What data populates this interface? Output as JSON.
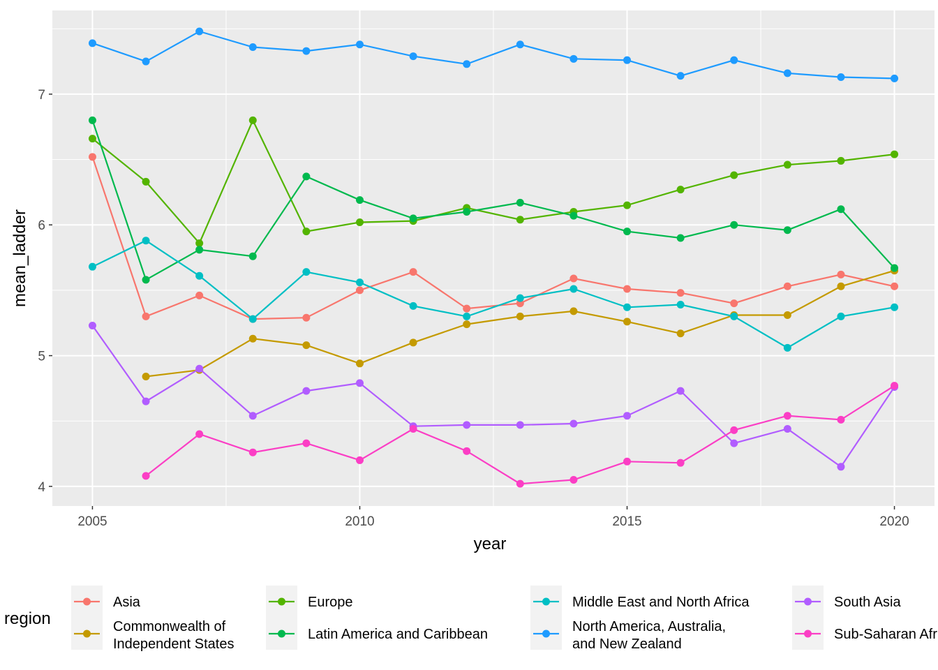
{
  "chart_data": {
    "type": "line",
    "xlabel": "year",
    "ylabel": "mean_ladder",
    "xlim": [
      2004.25,
      2020.75
    ],
    "ylim": [
      3.85,
      7.64
    ],
    "x_ticks": [
      2005,
      2010,
      2015,
      2020
    ],
    "y_ticks": [
      4,
      5,
      6,
      7
    ],
    "x_tick_labels": [
      "2005",
      "2010",
      "2015",
      "2020"
    ],
    "y_tick_labels": [
      "4",
      "5",
      "6",
      "7"
    ],
    "grid": true,
    "legend_title": "region",
    "legend_position": "bottom",
    "series": [
      {
        "name": "Asia",
        "color": "#F8766D",
        "x": [
          2005,
          2006,
          2007,
          2008,
          2009,
          2010,
          2011,
          2012,
          2013,
          2014,
          2015,
          2016,
          2017,
          2018,
          2019,
          2020
        ],
        "y": [
          6.52,
          5.3,
          5.46,
          5.28,
          5.29,
          5.5,
          5.64,
          5.36,
          5.4,
          5.59,
          5.51,
          5.48,
          5.4,
          5.53,
          5.62,
          5.53
        ]
      },
      {
        "name": "Commonwealth of Independent States",
        "color": "#C49A00",
        "x": [
          2006,
          2007,
          2008,
          2009,
          2010,
          2011,
          2012,
          2013,
          2014,
          2015,
          2016,
          2017,
          2018,
          2019,
          2020
        ],
        "y": [
          4.84,
          4.89,
          5.13,
          5.08,
          4.94,
          5.1,
          5.24,
          5.3,
          5.34,
          5.26,
          5.17,
          5.31,
          5.31,
          5.53,
          5.65
        ]
      },
      {
        "name": "Europe",
        "color": "#53B400",
        "x": [
          2005,
          2006,
          2007,
          2008,
          2009,
          2010,
          2011,
          2012,
          2013,
          2014,
          2015,
          2016,
          2017,
          2018,
          2019,
          2020
        ],
        "y": [
          6.66,
          6.33,
          5.86,
          6.8,
          5.95,
          6.02,
          6.03,
          6.13,
          6.04,
          6.1,
          6.15,
          6.27,
          6.38,
          6.46,
          6.49,
          6.54
        ]
      },
      {
        "name": "Latin America and Caribbean",
        "color": "#00B94E",
        "x": [
          2005,
          2006,
          2007,
          2008,
          2009,
          2010,
          2011,
          2012,
          2013,
          2014,
          2015,
          2016,
          2017,
          2018,
          2019,
          2020
        ],
        "y": [
          6.8,
          5.58,
          5.81,
          5.76,
          6.37,
          6.19,
          6.05,
          6.1,
          6.17,
          6.07,
          5.95,
          5.9,
          6.0,
          5.96,
          6.12,
          5.67
        ]
      },
      {
        "name": "Middle East and North Africa",
        "color": "#00BFC4",
        "x": [
          2005,
          2006,
          2007,
          2008,
          2009,
          2010,
          2011,
          2012,
          2013,
          2014,
          2015,
          2016,
          2017,
          2018,
          2019,
          2020
        ],
        "y": [
          5.68,
          5.88,
          5.61,
          5.28,
          5.64,
          5.56,
          5.38,
          5.3,
          5.44,
          5.51,
          5.37,
          5.39,
          5.3,
          5.06,
          5.3,
          5.37
        ]
      },
      {
        "name": "North America, Australia, and New Zealand",
        "color": "#1E9BFF",
        "x": [
          2005,
          2006,
          2007,
          2008,
          2009,
          2010,
          2011,
          2012,
          2013,
          2014,
          2015,
          2016,
          2017,
          2018,
          2019,
          2020
        ],
        "y": [
          7.39,
          7.25,
          7.48,
          7.36,
          7.33,
          7.38,
          7.29,
          7.23,
          7.38,
          7.27,
          7.26,
          7.14,
          7.26,
          7.16,
          7.13,
          7.12
        ]
      },
      {
        "name": "South Asia",
        "color": "#B15DFF",
        "x": [
          2005,
          2006,
          2007,
          2008,
          2009,
          2010,
          2011,
          2012,
          2013,
          2014,
          2015,
          2016,
          2017,
          2018,
          2019,
          2020
        ],
        "y": [
          5.23,
          4.65,
          4.9,
          4.54,
          4.73,
          4.79,
          4.46,
          4.47,
          4.47,
          4.48,
          4.54,
          4.73,
          4.33,
          4.44,
          4.15,
          4.76
        ]
      },
      {
        "name": "Sub-Saharan Africa",
        "color": "#FB3EC5",
        "x": [
          2006,
          2007,
          2008,
          2009,
          2010,
          2011,
          2012,
          2013,
          2014,
          2015,
          2016,
          2017,
          2018,
          2019,
          2020
        ],
        "y": [
          4.08,
          4.4,
          4.26,
          4.33,
          4.2,
          4.44,
          4.27,
          4.02,
          4.05,
          4.19,
          4.18,
          4.43,
          4.54,
          4.51,
          4.77
        ]
      }
    ],
    "legend": [
      {
        "lines": [
          "Asia"
        ],
        "color": "#F8766D"
      },
      {
        "lines": [
          "Commonwealth of",
          "Independent States"
        ],
        "color": "#C49A00"
      },
      {
        "lines": [
          "Europe"
        ],
        "color": "#53B400"
      },
      {
        "lines": [
          "Latin America and Caribbean"
        ],
        "color": "#00B94E"
      },
      {
        "lines": [
          "Middle East and North Africa"
        ],
        "color": "#00BFC4"
      },
      {
        "lines": [
          "North America, Australia,",
          "and New Zealand"
        ],
        "color": "#1E9BFF"
      },
      {
        "lines": [
          "South Asia"
        ],
        "color": "#B15DFF"
      },
      {
        "lines": [
          "Sub-Saharan Africa"
        ],
        "color": "#FB3EC5"
      }
    ]
  }
}
